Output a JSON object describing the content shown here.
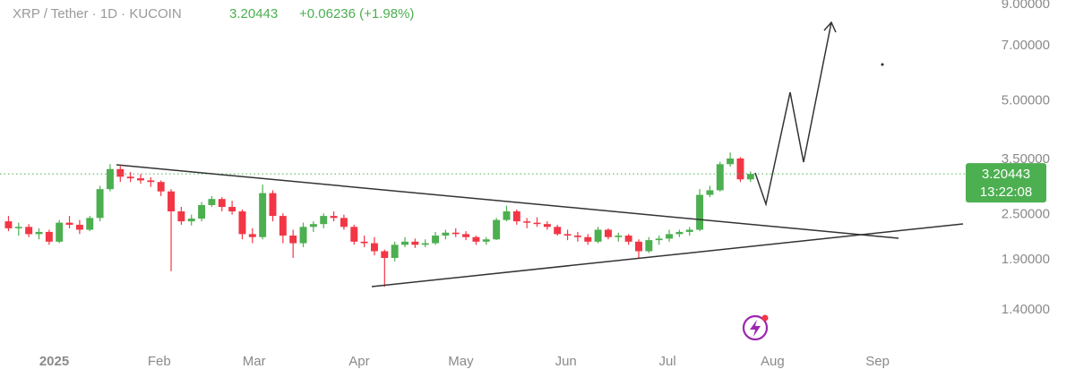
{
  "chart_data": {
    "type": "candlestick",
    "title": "XRP / Tether · 1D · KUCOIN",
    "last_price": 3.20443,
    "change": "+0.06236 (+1.98%)",
    "countdown": "13:22:08",
    "log_scale": true,
    "up_color": "#4caf50",
    "down_color": "#f23645",
    "xlim": [
      "2024-12-16",
      "2025-09-27"
    ],
    "ylim": [
      1.1,
      9.25
    ],
    "xticks": [
      {
        "value": "2025-01-01",
        "label": "2025"
      },
      {
        "value": "2025-02-01",
        "label": "Feb"
      },
      {
        "value": "2025-03-01",
        "label": "Mar"
      },
      {
        "value": "2025-04-01",
        "label": "Apr"
      },
      {
        "value": "2025-05-01",
        "label": "May"
      },
      {
        "value": "2025-06-01",
        "label": "Jun"
      },
      {
        "value": "2025-07-01",
        "label": "Jul"
      },
      {
        "value": "2025-08-01",
        "label": "Aug"
      },
      {
        "value": "2025-09-01",
        "label": "Sep"
      }
    ],
    "yticks": [
      {
        "value": 1.4,
        "label": "1.40000"
      },
      {
        "value": 1.9,
        "label": "1.90000"
      },
      {
        "value": 2.5,
        "label": "2.50000"
      },
      {
        "value": 3.5,
        "label": "3.50000"
      },
      {
        "value": 5,
        "label": "5.00000"
      },
      {
        "value": 7,
        "label": "7.00000"
      },
      {
        "value": 9,
        "label": "9.00000"
      }
    ],
    "x": [
      "2024-12-17",
      "2024-12-20",
      "2024-12-23",
      "2024-12-26",
      "2024-12-29",
      "2025-01-01",
      "2025-01-04",
      "2025-01-07",
      "2025-01-10",
      "2025-01-13",
      "2025-01-16",
      "2025-01-19",
      "2025-01-22",
      "2025-01-25",
      "2025-01-28",
      "2025-01-31",
      "2025-02-03",
      "2025-02-06",
      "2025-02-09",
      "2025-02-12",
      "2025-02-15",
      "2025-02-18",
      "2025-02-21",
      "2025-02-24",
      "2025-02-27",
      "2025-03-02",
      "2025-03-05",
      "2025-03-08",
      "2025-03-11",
      "2025-03-14",
      "2025-03-17",
      "2025-03-20",
      "2025-03-23",
      "2025-03-26",
      "2025-03-29",
      "2025-04-01",
      "2025-04-04",
      "2025-04-07",
      "2025-04-10",
      "2025-04-13",
      "2025-04-16",
      "2025-04-19",
      "2025-04-22",
      "2025-04-25",
      "2025-04-28",
      "2025-05-01",
      "2025-05-04",
      "2025-05-07",
      "2025-05-10",
      "2025-05-13",
      "2025-05-16",
      "2025-05-19",
      "2025-05-22",
      "2025-05-25",
      "2025-05-28",
      "2025-05-31",
      "2025-06-03",
      "2025-06-06",
      "2025-06-09",
      "2025-06-12",
      "2025-06-15",
      "2025-06-18",
      "2025-06-21",
      "2025-06-24",
      "2025-06-27",
      "2025-06-30",
      "2025-07-03",
      "2025-07-06",
      "2025-07-09",
      "2025-07-12",
      "2025-07-15",
      "2025-07-18",
      "2025-07-21",
      "2025-07-24"
    ],
    "open": [
      2.4,
      2.3,
      2.32,
      2.22,
      2.25,
      2.12,
      2.38,
      2.35,
      2.28,
      2.45,
      2.92,
      3.3,
      3.15,
      3.12,
      3.08,
      3.05,
      2.88,
      2.55,
      2.4,
      2.44,
      2.65,
      2.75,
      2.62,
      2.55,
      2.22,
      2.18,
      2.85,
      2.48,
      2.2,
      2.1,
      2.32,
      2.36,
      2.48,
      2.45,
      2.32,
      2.12,
      2.1,
      2.0,
      1.92,
      2.08,
      2.12,
      2.08,
      2.1,
      2.2,
      2.24,
      2.22,
      2.18,
      2.12,
      2.15,
      2.42,
      2.55,
      2.4,
      2.38,
      2.36,
      2.32,
      2.22,
      2.2,
      2.18,
      2.12,
      2.28,
      2.18,
      2.2,
      2.12,
      2.0,
      2.14,
      2.16,
      2.22,
      2.25,
      2.28,
      2.82,
      2.9,
      3.4,
      3.52,
      3.1
    ],
    "high": [
      2.48,
      2.38,
      2.36,
      2.3,
      2.28,
      2.42,
      2.48,
      2.42,
      2.48,
      2.98,
      3.4,
      3.36,
      3.24,
      3.2,
      3.14,
      3.08,
      2.92,
      2.62,
      2.5,
      2.7,
      2.8,
      2.78,
      2.72,
      2.58,
      2.3,
      3.0,
      2.9,
      2.52,
      2.28,
      2.38,
      2.4,
      2.52,
      2.55,
      2.5,
      2.35,
      2.2,
      2.18,
      2.02,
      2.12,
      2.18,
      2.16,
      2.15,
      2.25,
      2.28,
      2.3,
      2.26,
      2.2,
      2.18,
      2.45,
      2.64,
      2.58,
      2.45,
      2.46,
      2.4,
      2.35,
      2.28,
      2.25,
      2.22,
      2.32,
      2.3,
      2.24,
      2.22,
      2.15,
      2.18,
      2.2,
      2.28,
      2.28,
      2.32,
      2.92,
      2.98,
      3.45,
      3.65,
      3.55,
      3.25
    ],
    "low": [
      2.26,
      2.2,
      2.18,
      2.15,
      2.08,
      2.1,
      2.3,
      2.22,
      2.26,
      2.4,
      2.88,
      3.05,
      3.05,
      3.02,
      2.96,
      2.8,
      1.77,
      2.35,
      2.34,
      2.4,
      2.62,
      2.55,
      2.5,
      2.15,
      2.1,
      2.15,
      2.4,
      2.1,
      1.92,
      2.05,
      2.25,
      2.3,
      2.4,
      2.28,
      2.08,
      2.05,
      1.95,
      1.61,
      1.88,
      2.05,
      2.04,
      2.05,
      2.08,
      2.15,
      2.18,
      2.14,
      2.08,
      2.08,
      2.14,
      2.4,
      2.35,
      2.3,
      2.32,
      2.28,
      2.2,
      2.14,
      2.12,
      2.08,
      2.1,
      2.15,
      2.12,
      2.08,
      1.92,
      1.98,
      2.08,
      2.12,
      2.18,
      2.2,
      2.26,
      2.78,
      2.88,
      3.35,
      3.05,
      3.05
    ],
    "close": [
      2.3,
      2.32,
      2.22,
      2.25,
      2.12,
      2.38,
      2.35,
      2.28,
      2.45,
      2.92,
      3.3,
      3.15,
      3.12,
      3.08,
      3.05,
      2.88,
      2.55,
      2.4,
      2.44,
      2.65,
      2.75,
      2.62,
      2.55,
      2.22,
      2.18,
      2.85,
      2.48,
      2.2,
      2.1,
      2.32,
      2.36,
      2.48,
      2.45,
      2.32,
      2.12,
      2.1,
      2.0,
      1.92,
      2.08,
      2.12,
      2.08,
      2.1,
      2.2,
      2.24,
      2.22,
      2.18,
      2.12,
      2.15,
      2.42,
      2.55,
      2.4,
      2.38,
      2.36,
      2.32,
      2.22,
      2.2,
      2.18,
      2.12,
      2.28,
      2.18,
      2.2,
      2.12,
      2.0,
      2.14,
      2.16,
      2.22,
      2.25,
      2.28,
      2.82,
      2.9,
      3.4,
      3.52,
      3.1,
      3.20443
    ]
  }
}
